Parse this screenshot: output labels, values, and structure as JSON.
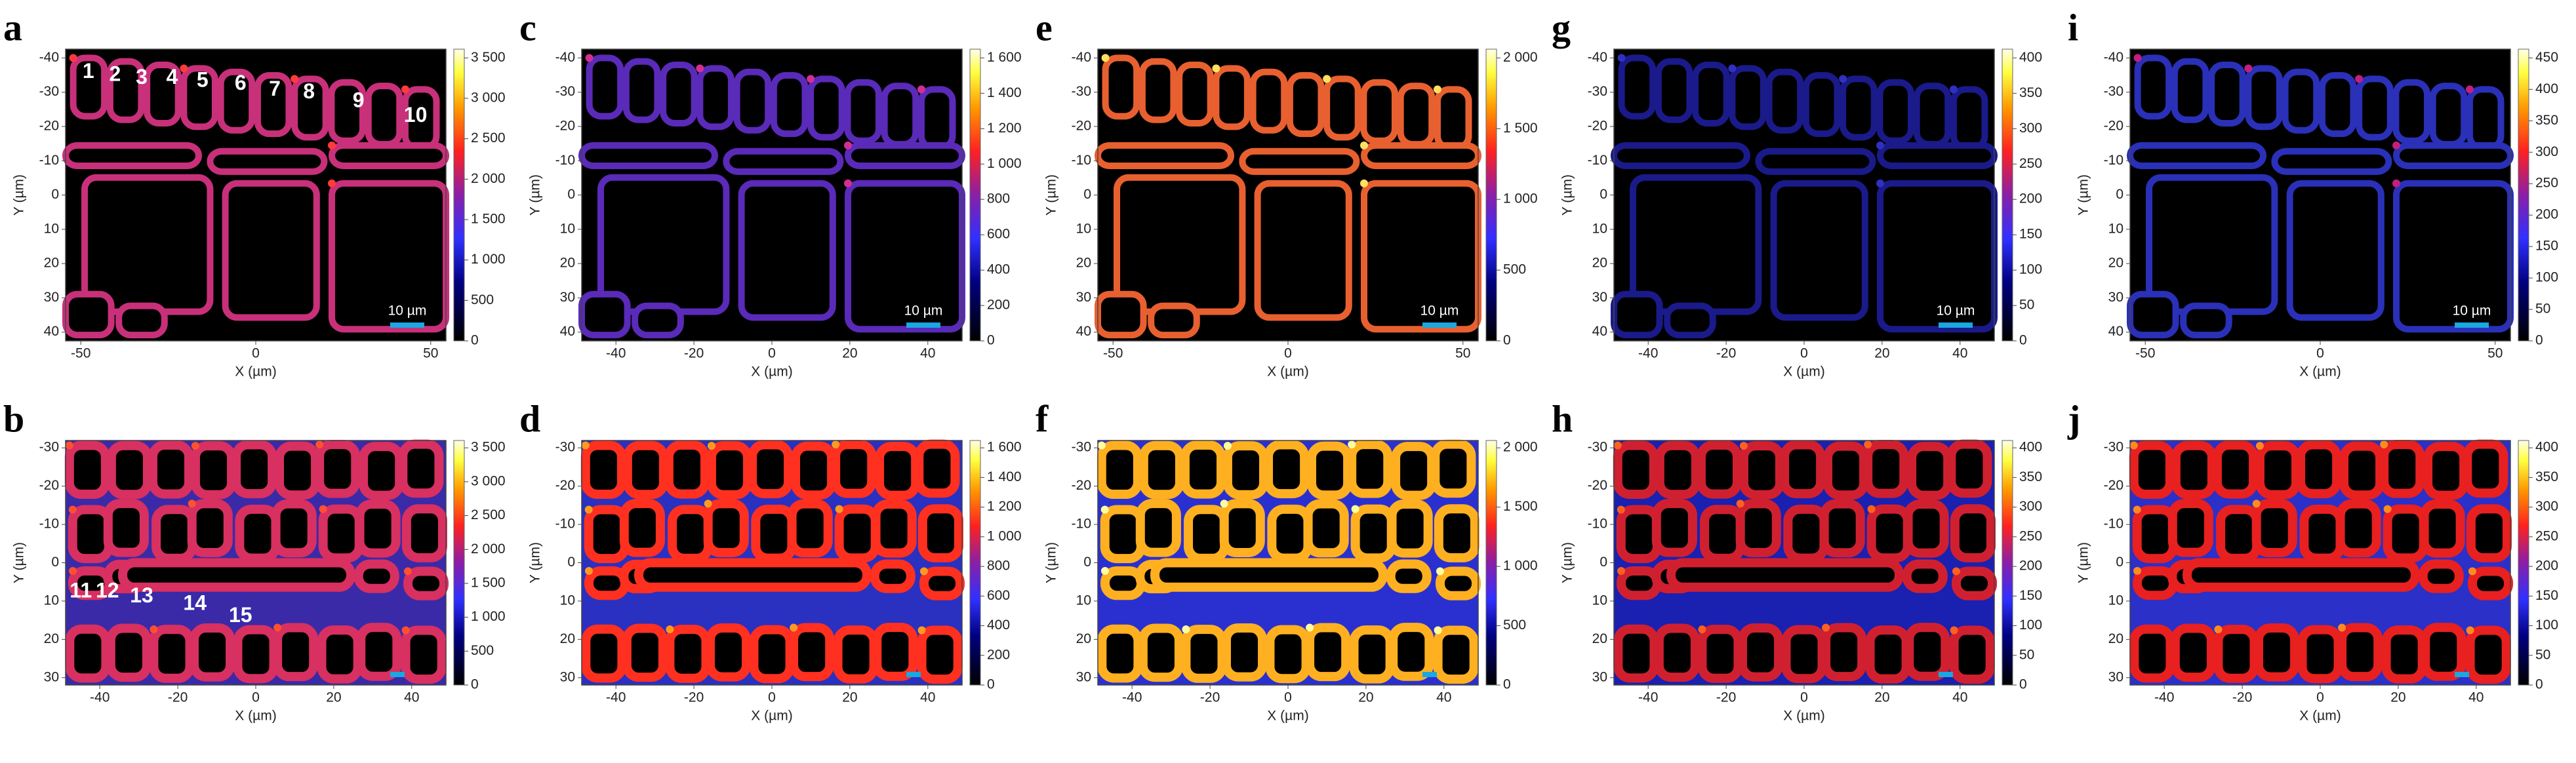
{
  "panels": [
    {
      "letter": "a",
      "x_label": "X (µm)",
      "y_label": "Y (µm)",
      "x_ticks": [
        "-50",
        "0",
        "50"
      ],
      "y_ticks": [
        "-40",
        "-30",
        "-20",
        "-10",
        "0",
        "10",
        "20",
        "30",
        "40"
      ],
      "colorbar_ticks": [
        "3 500",
        "3 000",
        "2 500",
        "2 000",
        "1 500",
        "1 000",
        "500",
        "0"
      ],
      "scale_bar": "10 µm",
      "cell_labels": [
        "1",
        "2",
        "3",
        "4",
        "5",
        "6",
        "7",
        "8",
        "9",
        "10"
      ]
    },
    {
      "letter": "b",
      "x_label": "X (µm)",
      "y_label": "Y (µm)",
      "x_ticks": [
        "-40",
        "-20",
        "0",
        "20",
        "40"
      ],
      "y_ticks": [
        "-30",
        "-20",
        "-10",
        "0",
        "10",
        "20",
        "30"
      ],
      "colorbar_ticks": [
        "3 500",
        "3 000",
        "2 500",
        "2 000",
        "1 500",
        "1 000",
        "500",
        "0"
      ],
      "cell_labels": [
        "11",
        "12",
        "13",
        "14",
        "15"
      ]
    },
    {
      "letter": "c",
      "x_label": "X (µm)",
      "y_label": "Y (µm)",
      "x_ticks": [
        "-40",
        "-20",
        "0",
        "20",
        "40"
      ],
      "y_ticks": [
        "-40",
        "-30",
        "-20",
        "-10",
        "0",
        "10",
        "20",
        "30",
        "40"
      ],
      "colorbar_ticks": [
        "1 600",
        "1 400",
        "1 200",
        "1 000",
        "800",
        "600",
        "400",
        "200",
        "0"
      ],
      "scale_bar": "10 µm"
    },
    {
      "letter": "d",
      "x_label": "X (µm)",
      "y_label": "Y (µm)",
      "x_ticks": [
        "-40",
        "-20",
        "0",
        "20",
        "40"
      ],
      "y_ticks": [
        "-30",
        "-20",
        "-10",
        "0",
        "10",
        "20",
        "30"
      ],
      "colorbar_ticks": [
        "1 600",
        "1 400",
        "1 200",
        "1 000",
        "800",
        "600",
        "400",
        "200",
        "0"
      ]
    },
    {
      "letter": "e",
      "x_label": "X (µm)",
      "y_label": "Y (µm)",
      "x_ticks": [
        "-50",
        "0",
        "50"
      ],
      "y_ticks": [
        "-40",
        "-30",
        "-20",
        "-10",
        "0",
        "10",
        "20",
        "30",
        "40"
      ],
      "colorbar_ticks": [
        "2 000",
        "1 500",
        "1 000",
        "500",
        "0"
      ],
      "scale_bar": "10 µm"
    },
    {
      "letter": "f",
      "x_label": "X (µm)",
      "y_label": "Y (µm)",
      "x_ticks": [
        "-40",
        "-20",
        "0",
        "20",
        "40"
      ],
      "y_ticks": [
        "-30",
        "-20",
        "-10",
        "0",
        "10",
        "20",
        "30"
      ],
      "colorbar_ticks": [
        "2 000",
        "1 500",
        "1 000",
        "500",
        "0"
      ]
    },
    {
      "letter": "g",
      "x_label": "X (µm)",
      "y_label": "Y (µm)",
      "x_ticks": [
        "-40",
        "-20",
        "0",
        "20",
        "40"
      ],
      "y_ticks": [
        "-40",
        "-30",
        "-20",
        "-10",
        "0",
        "10",
        "20",
        "30",
        "40"
      ],
      "colorbar_ticks": [
        "400",
        "350",
        "300",
        "250",
        "200",
        "150",
        "100",
        "50",
        "0"
      ],
      "scale_bar": "10 µm"
    },
    {
      "letter": "h",
      "x_label": "X (µm)",
      "y_label": "Y (µm)",
      "x_ticks": [
        "-40",
        "-20",
        "0",
        "20",
        "40"
      ],
      "y_ticks": [
        "-30",
        "-20",
        "-10",
        "0",
        "10",
        "20",
        "30"
      ],
      "colorbar_ticks": [
        "400",
        "350",
        "300",
        "250",
        "200",
        "150",
        "100",
        "50",
        "0"
      ]
    },
    {
      "letter": "i",
      "x_label": "X (µm)",
      "y_label": "Y (µm)",
      "x_ticks": [
        "-50",
        "0",
        "50"
      ],
      "y_ticks": [
        "-40",
        "-30",
        "-20",
        "-10",
        "0",
        "10",
        "20",
        "30",
        "40"
      ],
      "colorbar_ticks": [
        "450",
        "400",
        "350",
        "300",
        "250",
        "200",
        "150",
        "100",
        "50",
        "0"
      ],
      "scale_bar": "10 µm"
    },
    {
      "letter": "j",
      "x_label": "X (µm)",
      "y_label": "Y (µm)",
      "x_ticks": [
        "-40",
        "-20",
        "0",
        "20",
        "40"
      ],
      "y_ticks": [
        "-30",
        "-20",
        "-10",
        "0",
        "10",
        "20",
        "30"
      ],
      "colorbar_ticks": [
        "400",
        "350",
        "300",
        "250",
        "200",
        "150",
        "100",
        "50",
        "0"
      ]
    }
  ]
}
